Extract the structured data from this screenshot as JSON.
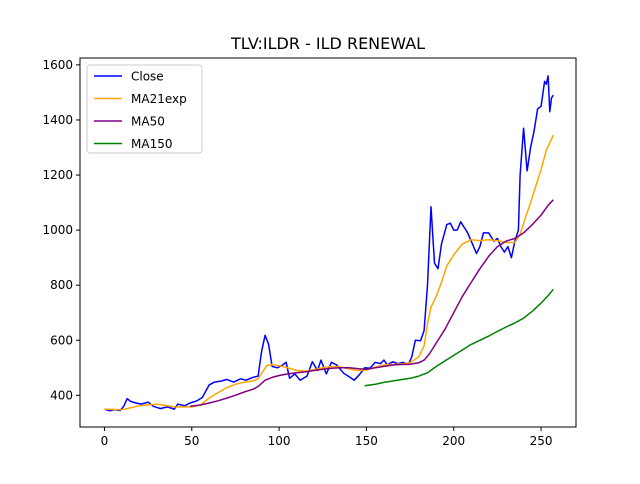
{
  "chart_data": {
    "type": "line",
    "title": "TLV:ILDR - ILD RENEWAL",
    "xlabel": "",
    "ylabel": "",
    "xlim": [
      -14,
      270
    ],
    "ylim": [
      285,
      1625
    ],
    "xticks": [
      0,
      50,
      100,
      150,
      200,
      250
    ],
    "yticks": [
      400,
      600,
      800,
      1000,
      1200,
      1400,
      1600
    ],
    "grid": false,
    "legend_position": "top-left",
    "series": [
      {
        "name": "Close",
        "color": "#0000ff",
        "points": [
          [
            0,
            350
          ],
          [
            3,
            344
          ],
          [
            6,
            348
          ],
          [
            9,
            345
          ],
          [
            11,
            360
          ],
          [
            13,
            388
          ],
          [
            15,
            378
          ],
          [
            18,
            372
          ],
          [
            21,
            368
          ],
          [
            25,
            375
          ],
          [
            28,
            360
          ],
          [
            32,
            352
          ],
          [
            36,
            358
          ],
          [
            40,
            350
          ],
          [
            42,
            368
          ],
          [
            46,
            362
          ],
          [
            49,
            372
          ],
          [
            53,
            380
          ],
          [
            56,
            392
          ],
          [
            60,
            438
          ],
          [
            63,
            448
          ],
          [
            67,
            452
          ],
          [
            70,
            458
          ],
          [
            74,
            448
          ],
          [
            78,
            460
          ],
          [
            81,
            455
          ],
          [
            85,
            465
          ],
          [
            88,
            470
          ],
          [
            90,
            560
          ],
          [
            92,
            618
          ],
          [
            94,
            585
          ],
          [
            96,
            505
          ],
          [
            99,
            500
          ],
          [
            102,
            510
          ],
          [
            104,
            520
          ],
          [
            106,
            462
          ],
          [
            109,
            478
          ],
          [
            112,
            455
          ],
          [
            116,
            470
          ],
          [
            119,
            522
          ],
          [
            122,
            490
          ],
          [
            124,
            528
          ],
          [
            127,
            478
          ],
          [
            130,
            520
          ],
          [
            133,
            510
          ],
          [
            137,
            480
          ],
          [
            140,
            468
          ],
          [
            143,
            455
          ],
          [
            146,
            475
          ],
          [
            149,
            500
          ],
          [
            152,
            498
          ],
          [
            155,
            520
          ],
          [
            158,
            515
          ],
          [
            160,
            528
          ],
          [
            162,
            510
          ],
          [
            165,
            522
          ],
          [
            168,
            515
          ],
          [
            171,
            520
          ],
          [
            174,
            512
          ],
          [
            176,
            540
          ],
          [
            178,
            600
          ],
          [
            181,
            598
          ],
          [
            183,
            635
          ],
          [
            185,
            800
          ],
          [
            187,
            1085
          ],
          [
            189,
            880
          ],
          [
            191,
            860
          ],
          [
            193,
            950
          ],
          [
            196,
            1020
          ],
          [
            198,
            1025
          ],
          [
            200,
            1000
          ],
          [
            202,
            1000
          ],
          [
            204,
            1030
          ],
          [
            206,
            1010
          ],
          [
            208,
            990
          ],
          [
            210,
            960
          ],
          [
            213,
            915
          ],
          [
            215,
            940
          ],
          [
            217,
            990
          ],
          [
            220,
            990
          ],
          [
            223,
            960
          ],
          [
            225,
            970
          ],
          [
            227,
            940
          ],
          [
            229,
            920
          ],
          [
            231,
            940
          ],
          [
            233,
            900
          ],
          [
            235,
            960
          ],
          [
            237,
            1000
          ],
          [
            238,
            1200
          ],
          [
            240,
            1370
          ],
          [
            242,
            1215
          ],
          [
            244,
            1300
          ],
          [
            246,
            1360
          ],
          [
            248,
            1440
          ],
          [
            250,
            1450
          ],
          [
            252,
            1540
          ],
          [
            253,
            1530
          ],
          [
            254,
            1560
          ],
          [
            255,
            1430
          ],
          [
            256,
            1480
          ],
          [
            257,
            1490
          ]
        ]
      },
      {
        "name": "MA21exp",
        "color": "#ffa500",
        "points": [
          [
            0,
            350
          ],
          [
            10,
            348
          ],
          [
            20,
            362
          ],
          [
            30,
            368
          ],
          [
            40,
            358
          ],
          [
            50,
            358
          ],
          [
            55,
            365
          ],
          [
            60,
            390
          ],
          [
            65,
            410
          ],
          [
            70,
            428
          ],
          [
            75,
            440
          ],
          [
            80,
            448
          ],
          [
            85,
            452
          ],
          [
            88,
            460
          ],
          [
            90,
            480
          ],
          [
            93,
            508
          ],
          [
            96,
            512
          ],
          [
            100,
            508
          ],
          [
            105,
            500
          ],
          [
            110,
            490
          ],
          [
            115,
            488
          ],
          [
            120,
            493
          ],
          [
            125,
            500
          ],
          [
            130,
            505
          ],
          [
            135,
            503
          ],
          [
            140,
            496
          ],
          [
            145,
            490
          ],
          [
            150,
            492
          ],
          [
            155,
            502
          ],
          [
            160,
            510
          ],
          [
            165,
            512
          ],
          [
            170,
            514
          ],
          [
            175,
            518
          ],
          [
            180,
            540
          ],
          [
            183,
            580
          ],
          [
            185,
            660
          ],
          [
            187,
            720
          ],
          [
            190,
            760
          ],
          [
            193,
            810
          ],
          [
            196,
            870
          ],
          [
            200,
            910
          ],
          [
            205,
            950
          ],
          [
            210,
            965
          ],
          [
            215,
            962
          ],
          [
            220,
            965
          ],
          [
            225,
            962
          ],
          [
            230,
            955
          ],
          [
            235,
            955
          ],
          [
            238,
            985
          ],
          [
            241,
            1045
          ],
          [
            244,
            1100
          ],
          [
            247,
            1160
          ],
          [
            250,
            1220
          ],
          [
            253,
            1290
          ],
          [
            257,
            1345
          ]
        ]
      },
      {
        "name": "MA50",
        "color": "#800080",
        "points": [
          [
            49,
            360
          ],
          [
            55,
            365
          ],
          [
            60,
            372
          ],
          [
            65,
            380
          ],
          [
            70,
            390
          ],
          [
            75,
            400
          ],
          [
            80,
            412
          ],
          [
            85,
            422
          ],
          [
            88,
            432
          ],
          [
            92,
            455
          ],
          [
            96,
            465
          ],
          [
            100,
            472
          ],
          [
            105,
            478
          ],
          [
            110,
            482
          ],
          [
            115,
            485
          ],
          [
            120,
            490
          ],
          [
            125,
            495
          ],
          [
            130,
            498
          ],
          [
            135,
            500
          ],
          [
            140,
            500
          ],
          [
            145,
            497
          ],
          [
            150,
            494
          ],
          [
            155,
            500
          ],
          [
            160,
            505
          ],
          [
            165,
            510
          ],
          [
            170,
            512
          ],
          [
            175,
            513
          ],
          [
            180,
            518
          ],
          [
            183,
            528
          ],
          [
            186,
            550
          ],
          [
            190,
            590
          ],
          [
            195,
            640
          ],
          [
            200,
            700
          ],
          [
            205,
            760
          ],
          [
            210,
            810
          ],
          [
            215,
            860
          ],
          [
            220,
            905
          ],
          [
            225,
            940
          ],
          [
            230,
            960
          ],
          [
            235,
            970
          ],
          [
            240,
            990
          ],
          [
            245,
            1020
          ],
          [
            250,
            1055
          ],
          [
            254,
            1090
          ],
          [
            257,
            1110
          ]
        ]
      },
      {
        "name": "MA150",
        "color": "#008000",
        "points": [
          [
            149,
            435
          ],
          [
            155,
            440
          ],
          [
            160,
            447
          ],
          [
            165,
            452
          ],
          [
            170,
            457
          ],
          [
            175,
            462
          ],
          [
            180,
            470
          ],
          [
            185,
            482
          ],
          [
            190,
            505
          ],
          [
            195,
            525
          ],
          [
            200,
            545
          ],
          [
            205,
            565
          ],
          [
            210,
            585
          ],
          [
            215,
            600
          ],
          [
            220,
            615
          ],
          [
            225,
            632
          ],
          [
            230,
            648
          ],
          [
            235,
            663
          ],
          [
            240,
            680
          ],
          [
            245,
            705
          ],
          [
            250,
            735
          ],
          [
            254,
            762
          ],
          [
            257,
            785
          ]
        ]
      }
    ]
  }
}
